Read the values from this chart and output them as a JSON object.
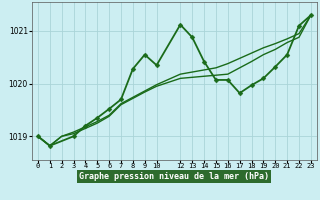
{
  "title": "Graphe pression niveau de la mer (hPa)",
  "bg_color": "#cceef2",
  "grid_color": "#aad4d8",
  "line_color": "#1a6b1a",
  "xlabel_bg": "#2d6b2d",
  "xlim": [
    -0.5,
    23.5
  ],
  "ylim": [
    1018.55,
    1021.55
  ],
  "yticks": [
    1019,
    1020,
    1021
  ],
  "xtick_labels": [
    "0",
    "1",
    "2",
    "3",
    "4",
    "5",
    "6",
    "7",
    "8",
    "9",
    "10",
    "12",
    "13",
    "14",
    "15",
    "16",
    "17",
    "18",
    "19",
    "20",
    "21",
    "22",
    "23"
  ],
  "xtick_positions": [
    0,
    1,
    2,
    3,
    4,
    5,
    6,
    7,
    8,
    9,
    10,
    12,
    13,
    14,
    15,
    16,
    17,
    18,
    19,
    20,
    21,
    22,
    23
  ],
  "series_main": {
    "x": [
      0,
      1,
      2,
      3,
      4,
      5,
      6,
      7,
      8,
      9,
      10,
      12,
      13,
      14,
      15,
      16,
      17,
      18,
      19,
      20,
      21,
      22,
      23
    ],
    "y": [
      1019.0,
      1018.82,
      1019.0,
      1019.05,
      1019.15,
      1019.25,
      1019.38,
      1019.6,
      1019.72,
      1019.84,
      1019.95,
      1020.1,
      1020.12,
      1020.14,
      1020.16,
      1020.18,
      1020.3,
      1020.42,
      1020.55,
      1020.65,
      1020.78,
      1020.88,
      1021.3
    ],
    "linewidth": 1.0
  },
  "series_smooth2": {
    "x": [
      0,
      1,
      2,
      3,
      4,
      5,
      6,
      7,
      8,
      9,
      10,
      12,
      13,
      14,
      15,
      16,
      17,
      18,
      19,
      20,
      21,
      22,
      23
    ],
    "y": [
      1019.0,
      1018.82,
      1019.0,
      1019.08,
      1019.18,
      1019.28,
      1019.4,
      1019.62,
      1019.74,
      1019.86,
      1019.98,
      1020.18,
      1020.22,
      1020.26,
      1020.3,
      1020.38,
      1020.48,
      1020.58,
      1020.68,
      1020.76,
      1020.85,
      1020.95,
      1021.3
    ],
    "linewidth": 1.0
  },
  "series_jagged": {
    "x": [
      0,
      1,
      3,
      4,
      5,
      6,
      7,
      8,
      9,
      10,
      12,
      13,
      14,
      15,
      16,
      17,
      18,
      19,
      20,
      21,
      22,
      23
    ],
    "y": [
      1019.0,
      1018.82,
      1019.0,
      1019.2,
      1019.35,
      1019.52,
      1019.7,
      1020.28,
      1020.55,
      1020.35,
      1021.12,
      1020.88,
      1020.42,
      1020.07,
      1020.07,
      1019.82,
      1019.97,
      1020.1,
      1020.32,
      1020.55,
      1021.1,
      1021.3
    ],
    "linewidth": 1.3,
    "markersize": 2.5
  }
}
